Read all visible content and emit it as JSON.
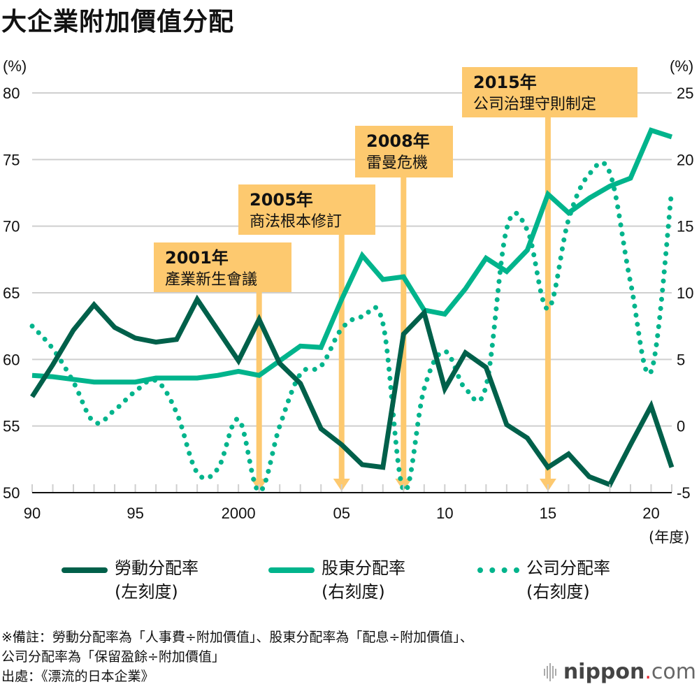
{
  "title": "大企業附加價值分配",
  "left_axis_unit": "(%)",
  "right_axis_unit": "(%)",
  "x_axis_unit": "(年度)",
  "legend": [
    {
      "name": "勞動分配率",
      "scale": "(左刻度)",
      "style": "solid",
      "color": "#00604A"
    },
    {
      "name": "股東分配率",
      "scale": "(右刻度)",
      "style": "solid",
      "color": "#00B48C"
    },
    {
      "name": "公司分配率",
      "scale": "(右刻度)",
      "style": "dotted",
      "color": "#00B48C"
    }
  ],
  "annotations": [
    {
      "year_label": "2001年",
      "text": "產業新生會議",
      "year": 2001
    },
    {
      "year_label": "2005年",
      "text": "商法根本修訂",
      "year": 2005
    },
    {
      "year_label": "2008年",
      "text": "雷曼危機",
      "year": 2008
    },
    {
      "year_label": "2015年",
      "text": "公司治理守則制定",
      "year": 2015
    }
  ],
  "annotation_color": "#FDC96F",
  "footnote": {
    "line1": "※備註：勞動分配率為「人事費÷附加價值」、股東分配率為「配息÷附加價值」、",
    "line2": "公司分配率為「保留盈餘÷附加價值」",
    "line3": "出處：《漂流的日本企業》"
  },
  "logo": {
    "main": "nippon",
    "dot": ".",
    "suffix": "com"
  },
  "chart_data": {
    "type": "line",
    "title": "大企業附加價值分配",
    "xlabel": "(年度)",
    "ylabel_left": "(%)",
    "ylabel_right": "(%)",
    "x": [
      1990,
      1991,
      1992,
      1993,
      1994,
      1995,
      1996,
      1997,
      1998,
      1999,
      2000,
      2001,
      2002,
      2003,
      2004,
      2005,
      2006,
      2007,
      2008,
      2009,
      2010,
      2011,
      2012,
      2013,
      2014,
      2015,
      2016,
      2017,
      2018,
      2019,
      2020,
      2021
    ],
    "x_ticks": [
      1990,
      1995,
      2000,
      2005,
      2010,
      2015,
      2020
    ],
    "x_tick_labels": [
      "90",
      "95",
      "2000",
      "05",
      "10",
      "15",
      "20"
    ],
    "xlim": [
      1990,
      2021
    ],
    "ylim_left": [
      50,
      80
    ],
    "y_ticks_left": [
      50,
      55,
      60,
      65,
      70,
      75,
      80
    ],
    "ylim_right": [
      -5,
      25
    ],
    "y_ticks_right": [
      -5,
      0,
      5,
      10,
      15,
      20,
      25
    ],
    "grid": true,
    "legend_position": "bottom",
    "series": [
      {
        "name": "勞動分配率",
        "axis": "left",
        "style": "solid",
        "color": "#00604A",
        "values": [
          57.2,
          59.6,
          62.2,
          64.1,
          62.4,
          61.6,
          61.3,
          61.5,
          64.5,
          62.2,
          59.9,
          63.0,
          59.7,
          58.2,
          54.8,
          53.6,
          52.1,
          51.9,
          61.9,
          63.5,
          57.8,
          60.5,
          59.4,
          55.1,
          54.1,
          51.9,
          52.9,
          51.2,
          50.6,
          53.6,
          56.5,
          51.9
        ]
      },
      {
        "name": "股東分配率",
        "axis": "right",
        "style": "solid",
        "color": "#00B48C",
        "values": [
          3.8,
          3.7,
          3.5,
          3.3,
          3.3,
          3.3,
          3.6,
          3.6,
          3.6,
          3.8,
          4.1,
          3.8,
          4.9,
          6.0,
          5.9,
          9.5,
          12.8,
          11.0,
          11.2,
          8.7,
          8.4,
          10.3,
          12.6,
          11.6,
          13.2,
          17.4,
          16.0,
          17.1,
          18.0,
          18.6,
          22.2,
          21.7
        ]
      },
      {
        "name": "公司分配率",
        "axis": "right",
        "style": "dotted",
        "color": "#00B48C",
        "values": [
          7.5,
          5.8,
          3.3,
          0.3,
          1.2,
          2.6,
          3.4,
          1.0,
          -3.5,
          -3.2,
          0.5,
          -4.9,
          0.0,
          3.9,
          4.5,
          7.3,
          8.2,
          7.7,
          -4.8,
          2.8,
          5.6,
          2.8,
          3.0,
          14.8,
          14.7,
          8.8,
          15.5,
          18.9,
          19.0,
          10.8,
          4.1,
          17.7
        ]
      }
    ],
    "annotations": [
      {
        "year": 2001,
        "label": "2001年 產業新生會議"
      },
      {
        "year": 2005,
        "label": "2005年 商法根本修訂"
      },
      {
        "year": 2008,
        "label": "2008年 雷曼危機"
      },
      {
        "year": 2015,
        "label": "2015年 公司治理守則制定"
      }
    ]
  }
}
